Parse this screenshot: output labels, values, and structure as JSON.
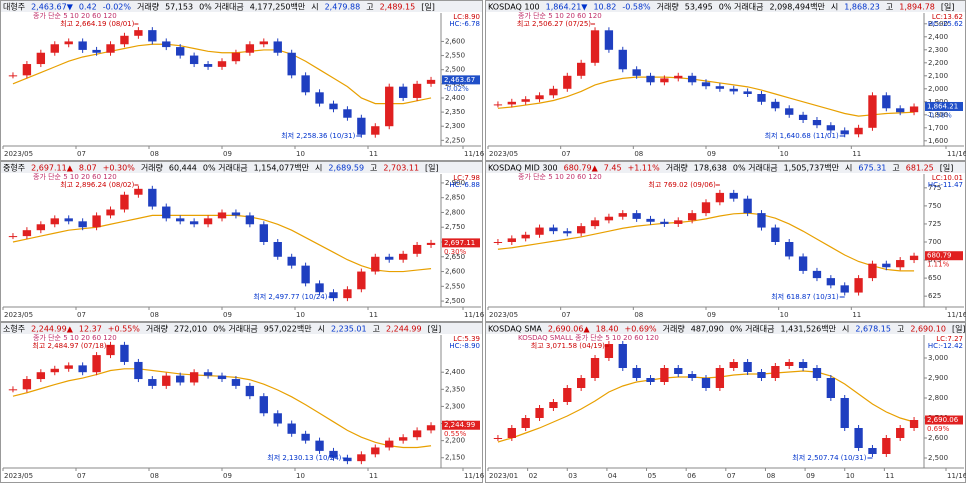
{
  "panels": [
    {
      "header": [
        {
          "text": "대형주",
          "color": "#000"
        },
        {
          "text": "2,463.67▼",
          "color": "#0033cc"
        },
        {
          "text": "0.42",
          "color": "#0033cc"
        },
        {
          "text": "-0.02%",
          "color": "#0033cc"
        },
        {
          "text": "거래량",
          "color": "#000"
        },
        {
          "text": "57,153",
          "color": "#000"
        },
        {
          "text": "0% 거래대금",
          "color": "#000"
        },
        {
          "text": "4,177,250백만",
          "color": "#000"
        },
        {
          "text": "시",
          "color": "#000"
        },
        {
          "text": "2,479.88",
          "color": "#0033cc"
        },
        {
          "text": "고",
          "color": "#000"
        },
        {
          "text": "2,489.15",
          "color": "#cc0000"
        },
        {
          "text": "[일]",
          "color": "#000"
        }
      ],
      "legend": "종가 단순 5 10 20 60 120",
      "lc": "LC:8.90",
      "hc": "HC:-6.78",
      "ylim": [
        2230,
        2690
      ],
      "yticks": [
        {
          "value": 2600,
          "label": "2,600"
        },
        {
          "value": 2550,
          "label": "2,550"
        },
        {
          "value": 2500,
          "label": "2,500"
        },
        {
          "value": 2450,
          "label": "2,450"
        },
        {
          "value": 2400,
          "label": "2,400"
        },
        {
          "value": 2350,
          "label": "2,350"
        },
        {
          "value": 2300,
          "label": "2,300"
        },
        {
          "value": 2250,
          "label": "2,250"
        }
      ],
      "xlabels": [
        "2023/05",
        "07",
        "08",
        "09",
        "10",
        "11",
        "11/16"
      ],
      "high": "최고 2,664.19 (08/01)",
      "low": "최저 2,258.36 (10/31)",
      "price_label": "2,463.67",
      "pct_label": "-0.02%",
      "price_color": "#1f4fc8",
      "closes": [
        2480,
        2520,
        2560,
        2590,
        2600,
        2570,
        2560,
        2590,
        2620,
        2640,
        2600,
        2580,
        2550,
        2520,
        2510,
        2530,
        2560,
        2590,
        2600,
        2560,
        2480,
        2420,
        2380,
        2360,
        2330,
        2270,
        2300,
        2440,
        2400,
        2450,
        2464
      ],
      "ma": [
        2450,
        2470,
        2490,
        2510,
        2530,
        2545,
        2555,
        2565,
        2575,
        2585,
        2590,
        2590,
        2585,
        2575,
        2565,
        2560,
        2560,
        2565,
        2570,
        2570,
        2555,
        2530,
        2500,
        2470,
        2440,
        2400,
        2380,
        2380,
        2380,
        2390,
        2400
      ]
    },
    {
      "header": [
        {
          "text": "KOSDAQ 100",
          "color": "#000"
        },
        {
          "text": "1,864.21▼",
          "color": "#0033cc"
        },
        {
          "text": "10.82",
          "color": "#0033cc"
        },
        {
          "text": "-0.58%",
          "color": "#0033cc"
        },
        {
          "text": "거래량",
          "color": "#000"
        },
        {
          "text": "53,495",
          "color": "#000"
        },
        {
          "text": "0% 거래대금",
          "color": "#000"
        },
        {
          "text": "2,098,494백만",
          "color": "#000"
        },
        {
          "text": "시",
          "color": "#000"
        },
        {
          "text": "1,868.23",
          "color": "#0033cc"
        },
        {
          "text": "고",
          "color": "#000"
        },
        {
          "text": "1,894.78",
          "color": "#cc0000"
        },
        {
          "text": "[일]",
          "color": "#000"
        }
      ],
      "legend": "종가 단순 5 10 20 60 120",
      "lc": "LC:13.62",
      "hc": "HC:-25.62",
      "ylim": [
        1560,
        2560
      ],
      "yticks": [
        {
          "value": 2500,
          "label": "2,500"
        },
        {
          "value": 2400,
          "label": "2,400"
        },
        {
          "value": 2300,
          "label": "2,300"
        },
        {
          "value": 2200,
          "label": "2,200"
        },
        {
          "value": 2100,
          "label": "2,100"
        },
        {
          "value": 2000,
          "label": "2,000"
        },
        {
          "value": 1900,
          "label": "1,900"
        },
        {
          "value": 1800,
          "label": "1,800"
        },
        {
          "value": 1700,
          "label": "1,700"
        },
        {
          "value": 1600,
          "label": "1,600"
        }
      ],
      "xlabels": [
        "2023/05",
        "07",
        "08",
        "09",
        "10",
        "11",
        "11/16"
      ],
      "high": "최고 2,506.27 (07/25)",
      "low": "최저 1,640.68 (11/01)",
      "price_label": "1,864.21",
      "pct_label": "-0.58%",
      "price_color": "#1f4fc8",
      "closes": [
        1880,
        1900,
        1920,
        1950,
        2000,
        2100,
        2200,
        2450,
        2300,
        2150,
        2100,
        2050,
        2080,
        2100,
        2050,
        2020,
        2000,
        1980,
        1960,
        1900,
        1850,
        1800,
        1760,
        1720,
        1680,
        1650,
        1700,
        1950,
        1850,
        1820,
        1864
      ],
      "ma": [
        1850,
        1860,
        1875,
        1890,
        1910,
        1940,
        1980,
        2030,
        2060,
        2080,
        2090,
        2090,
        2090,
        2085,
        2075,
        2060,
        2045,
        2030,
        2015,
        1990,
        1960,
        1930,
        1900,
        1870,
        1840,
        1810,
        1790,
        1800,
        1810,
        1815,
        1820
      ]
    },
    {
      "header": [
        {
          "text": "중형주",
          "color": "#000"
        },
        {
          "text": "2,697.11▲",
          "color": "#cc0000"
        },
        {
          "text": "8.07",
          "color": "#cc0000"
        },
        {
          "text": "+0.30%",
          "color": "#cc0000"
        },
        {
          "text": "거래량",
          "color": "#000"
        },
        {
          "text": "60,444",
          "color": "#000"
        },
        {
          "text": "0% 거래대금",
          "color": "#000"
        },
        {
          "text": "1,154,077백만",
          "color": "#000"
        },
        {
          "text": "시",
          "color": "#000"
        },
        {
          "text": "2,689.59",
          "color": "#0033cc"
        },
        {
          "text": "고",
          "color": "#000"
        },
        {
          "text": "2,703.11",
          "color": "#cc0000"
        },
        {
          "text": "[일]",
          "color": "#000"
        }
      ],
      "legend": "종가 단순 5 10 20 60 120",
      "lc": "LC:7.98",
      "hc": "HC:-6.88",
      "ylim": [
        2480,
        2920
      ],
      "yticks": [
        {
          "value": 2900,
          "label": "2,900"
        },
        {
          "value": 2850,
          "label": "2,850"
        },
        {
          "value": 2800,
          "label": "2,800"
        },
        {
          "value": 2750,
          "label": "2,750"
        },
        {
          "value": 2700,
          "label": "2,700"
        },
        {
          "value": 2650,
          "label": "2,650"
        },
        {
          "value": 2600,
          "label": "2,600"
        },
        {
          "value": 2550,
          "label": "2,550"
        },
        {
          "value": 2500,
          "label": "2,500"
        }
      ],
      "xlabels": [
        "2023/05",
        "07",
        "08",
        "09",
        "10",
        "11",
        "11/16"
      ],
      "high": "최고 2,896.24 (08/02)",
      "low": "최저 2,497.77 (10/24)",
      "price_label": "2,697.11",
      "pct_label": "0.30%",
      "price_color": "#e02020",
      "closes": [
        2720,
        2740,
        2760,
        2780,
        2770,
        2750,
        2790,
        2810,
        2860,
        2880,
        2820,
        2780,
        2770,
        2760,
        2780,
        2800,
        2790,
        2760,
        2700,
        2650,
        2620,
        2560,
        2530,
        2510,
        2540,
        2600,
        2650,
        2640,
        2660,
        2690,
        2697
      ],
      "ma": [
        2700,
        2710,
        2720,
        2730,
        2740,
        2745,
        2750,
        2760,
        2770,
        2780,
        2790,
        2790,
        2790,
        2790,
        2790,
        2790,
        2790,
        2785,
        2775,
        2760,
        2740,
        2715,
        2690,
        2665,
        2640,
        2620,
        2605,
        2600,
        2600,
        2605,
        2610
      ]
    },
    {
      "header": [
        {
          "text": "KOSDAQ MID 300",
          "color": "#000"
        },
        {
          "text": "680.79▲",
          "color": "#cc0000"
        },
        {
          "text": "7.45",
          "color": "#cc0000"
        },
        {
          "text": "+1.11%",
          "color": "#cc0000"
        },
        {
          "text": "거래량",
          "color": "#000"
        },
        {
          "text": "178,638",
          "color": "#000"
        },
        {
          "text": "0% 거래대금",
          "color": "#000"
        },
        {
          "text": "1,505,737백만",
          "color": "#000"
        },
        {
          "text": "시",
          "color": "#000"
        },
        {
          "text": "675.31",
          "color": "#0033cc"
        },
        {
          "text": "고",
          "color": "#000"
        },
        {
          "text": "681.25",
          "color": "#cc0000"
        },
        {
          "text": "[일]",
          "color": "#000"
        }
      ],
      "legend": "종가 단순 5 10 20 60 120",
      "lc": "LC:10.01",
      "hc": "HC:-11.47",
      "ylim": [
        610,
        790
      ],
      "yticks": [
        775,
        750,
        725,
        700,
        675,
        650,
        625
      ],
      "xlabels": [
        "2023/05",
        "07",
        "08",
        "09",
        "10",
        "11",
        "11/16"
      ],
      "high": "최고 769.02 (09/06)",
      "low": "최저 618.87 (10/31)",
      "price_label": "680.79",
      "pct_label": "1.11%",
      "price_color": "#e02020",
      "closes": [
        700,
        705,
        710,
        720,
        715,
        712,
        722,
        730,
        735,
        740,
        732,
        728,
        725,
        730,
        740,
        755,
        768,
        760,
        740,
        720,
        700,
        680,
        660,
        650,
        640,
        630,
        650,
        670,
        665,
        675,
        681
      ],
      "ma": [
        690,
        692,
        695,
        698,
        701,
        704,
        707,
        711,
        715,
        719,
        722,
        724,
        726,
        727,
        729,
        732,
        736,
        739,
        740,
        738,
        733,
        725,
        715,
        704,
        693,
        682,
        673,
        667,
        662,
        660,
        660
      ]
    },
    {
      "header": [
        {
          "text": "소형주",
          "color": "#000"
        },
        {
          "text": "2,244.99▲",
          "color": "#cc0000"
        },
        {
          "text": "12.37",
          "color": "#cc0000"
        },
        {
          "text": "+0.55%",
          "color": "#cc0000"
        },
        {
          "text": "거래량",
          "color": "#000"
        },
        {
          "text": "272,010",
          "color": "#000"
        },
        {
          "text": "0% 거래대금",
          "color": "#000"
        },
        {
          "text": "957,022백만",
          "color": "#000"
        },
        {
          "text": "시",
          "color": "#000"
        },
        {
          "text": "2,235.01",
          "color": "#0033cc"
        },
        {
          "text": "고",
          "color": "#000"
        },
        {
          "text": "2,244.99",
          "color": "#cc0000"
        },
        {
          "text": "[일]",
          "color": "#000"
        }
      ],
      "legend": "종가 단순 5 10 20 60 120",
      "lc": "LC:5.39",
      "hc": "HC:-8.90",
      "ylim": [
        2120,
        2500
      ],
      "yticks": [
        {
          "value": 2400,
          "label": "2,400"
        },
        {
          "value": 2350,
          "label": "2,350"
        },
        {
          "value": 2300,
          "label": "2,300"
        },
        {
          "value": 2250,
          "label": "2,250"
        },
        {
          "value": 2200,
          "label": "2,200"
        },
        {
          "value": 2150,
          "label": "2,150"
        }
      ],
      "xlabels": [
        "2023/05",
        "07",
        "08",
        "09",
        "10",
        "11",
        "11/16"
      ],
      "high": "최고 2,484.97 (07/18)",
      "low": "최저 2,130.13 (10/24)",
      "price_label": "2,244.99",
      "pct_label": "0.55%",
      "price_color": "#e02020",
      "closes": [
        2350,
        2380,
        2400,
        2410,
        2420,
        2400,
        2450,
        2480,
        2430,
        2380,
        2360,
        2390,
        2370,
        2400,
        2390,
        2380,
        2360,
        2330,
        2280,
        2250,
        2220,
        2200,
        2170,
        2150,
        2140,
        2160,
        2180,
        2200,
        2210,
        2230,
        2245
      ],
      "ma": [
        2330,
        2340,
        2352,
        2364,
        2375,
        2383,
        2393,
        2405,
        2410,
        2410,
        2405,
        2400,
        2395,
        2392,
        2390,
        2388,
        2385,
        2378,
        2365,
        2348,
        2328,
        2305,
        2280,
        2255,
        2230,
        2210,
        2195,
        2185,
        2180,
        2180,
        2185
      ]
    },
    {
      "header": [
        {
          "text": "KOSDAQ SMA",
          "color": "#000"
        },
        {
          "text": "2,690.06▲",
          "color": "#cc0000"
        },
        {
          "text": "18.40",
          "color": "#cc0000"
        },
        {
          "text": "+0.69%",
          "color": "#cc0000"
        },
        {
          "text": "거래량",
          "color": "#000"
        },
        {
          "text": "487,090",
          "color": "#000"
        },
        {
          "text": "0% 거래대금",
          "color": "#000"
        },
        {
          "text": "1,431,526백만",
          "color": "#000"
        },
        {
          "text": "시",
          "color": "#000"
        },
        {
          "text": "2,678.15",
          "color": "#0033cc"
        },
        {
          "text": "고",
          "color": "#000"
        },
        {
          "text": "2,690.10",
          "color": "#cc0000"
        },
        {
          "text": "[일]",
          "color": "#000"
        }
      ],
      "legend": "KOSDAQ SMALL 종가 단순 5 10 20 60 120",
      "lc": "LC:7.27",
      "hc": "HC:-12.42",
      "ylim": [
        2450,
        3100
      ],
      "yticks": [
        {
          "value": 3000,
          "label": "3,000"
        },
        {
          "value": 2900,
          "label": "2,900"
        },
        {
          "value": 2800,
          "label": "2,800"
        },
        {
          "value": 2700,
          "label": "2,700"
        },
        {
          "value": 2600,
          "label": "2,600"
        },
        {
          "value": 2500,
          "label": "2,500"
        }
      ],
      "xlabels": [
        "2023/01",
        "02",
        "03",
        "04",
        "05",
        "06",
        "07",
        "08",
        "09",
        "10",
        "11",
        "11/16"
      ],
      "high": "최고 3,071.58 (04/19)",
      "low": "최저 2,507.74 (10/31)",
      "price_label": "2,690.06",
      "pct_label": "0.69%",
      "price_color": "#e02020",
      "closes": [
        2600,
        2650,
        2700,
        2750,
        2780,
        2850,
        2900,
        3000,
        3070,
        2950,
        2900,
        2880,
        2950,
        2920,
        2900,
        2850,
        2950,
        2980,
        2930,
        2900,
        2960,
        2980,
        2950,
        2900,
        2800,
        2650,
        2550,
        2520,
        2600,
        2650,
        2690
      ],
      "ma": [
        2580,
        2600,
        2625,
        2650,
        2680,
        2710,
        2745,
        2785,
        2830,
        2860,
        2880,
        2890,
        2900,
        2905,
        2905,
        2900,
        2905,
        2915,
        2920,
        2920,
        2925,
        2930,
        2935,
        2930,
        2910,
        2870,
        2820,
        2770,
        2730,
        2700,
        2680
      ]
    }
  ]
}
